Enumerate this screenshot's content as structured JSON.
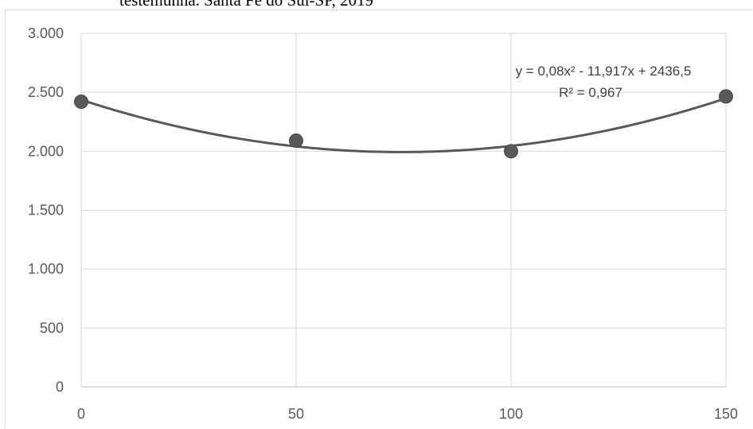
{
  "caption": "testemunha. Santa Fé do Sul-SP, 2019",
  "chart_data": {
    "type": "scatter",
    "x": [
      0,
      50,
      100,
      150
    ],
    "y": [
      2420,
      2090,
      2000,
      2465
    ],
    "xlim": [
      0,
      150
    ],
    "ylim": [
      0,
      3000
    ],
    "x_ticks": [
      0,
      50,
      100,
      150
    ],
    "y_ticks": [
      0,
      500,
      1000,
      1500,
      2000,
      2500,
      3000
    ],
    "x_tick_labels": [
      "0",
      "50",
      "100",
      "150"
    ],
    "y_tick_labels": [
      "0",
      "500",
      "1.000",
      "1.500",
      "2.000",
      "2.500",
      "3.000"
    ],
    "trendline": {
      "type": "polynomial",
      "order": 2,
      "coefficients": [
        0.08,
        -11.917,
        2436.5
      ]
    },
    "annotations": {
      "equation": "y = 0,08x² - 11,917x + 2436,5",
      "r_squared": "R² = 0,967"
    },
    "grid": true,
    "colors": {
      "marker": "#595959",
      "trend": "#595959",
      "grid": "#d9d9d9",
      "axis": "#bfbfbf"
    }
  }
}
